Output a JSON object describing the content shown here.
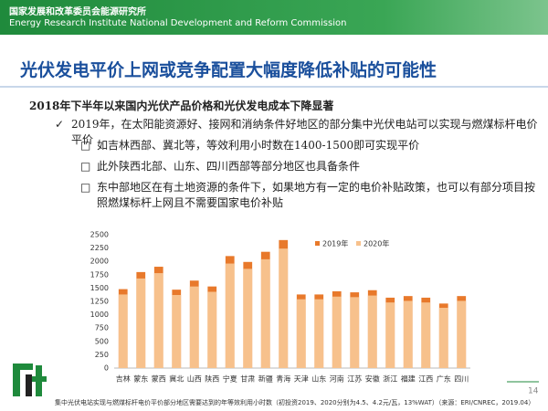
{
  "header": {
    "org_cn": "国家发展和改革委员会能源研究所",
    "org_en": "Energy Research Institute National Development and Reform Commission"
  },
  "title": "光伏发电平价上网或竞争配置大幅度降低补贴的可能性",
  "subtitle": "2018年下半年以来国内光伏产品价格和光伏发电成本下降显著",
  "bullet": "2019年，在太阳能资源好、接网和消纳条件好地区的部分集中光伏电站可以实现与燃煤标杆电价平价",
  "sub_bullets": [
    "如吉林西部、冀北等，等效利用小时数在1400-1500即可实现平价",
    "此外陕西北部、山东、四川西部等部分地区也具备条件",
    "东中部地区在有土地资源的条件下，如果地方有一定的电价补贴政策，也可以有部分项目按照燃煤标杆上网且不需要国家电价补贴"
  ],
  "chart_data": {
    "type": "bar",
    "categories": [
      "吉林",
      "蒙东",
      "蒙西",
      "冀北",
      "山西",
      "陕西",
      "宁夏",
      "甘肃",
      "新疆",
      "青海",
      "天津",
      "山东",
      "河南",
      "江苏",
      "安徽",
      "浙江",
      "福建",
      "江西",
      "广东",
      "四川"
    ],
    "series": [
      {
        "name": "2019年",
        "color": "#e8792b",
        "values": [
          1480,
          1800,
          1900,
          1470,
          1640,
          1530,
          2100,
          1990,
          2180,
          2400,
          1380,
          1380,
          1440,
          1420,
          1460,
          1320,
          1350,
          1320,
          1210,
          1350
        ]
      },
      {
        "name": "2020年",
        "color": "#f7c18c",
        "values": [
          1380,
          1680,
          1780,
          1370,
          1530,
          1430,
          1960,
          1860,
          2040,
          2240,
          1290,
          1290,
          1340,
          1330,
          1360,
          1230,
          1260,
          1230,
          1130,
          1260
        ]
      }
    ],
    "ylim": [
      0,
      2500
    ],
    "yticks": [
      0,
      250,
      500,
      750,
      1000,
      1250,
      1500,
      1750,
      2000,
      2250,
      2500
    ],
    "grid": false,
    "legend": "upper-right",
    "overlap": true
  },
  "footnote": "集中光伏电站实现与燃煤标杆电价平价部分地区需要达到的年等效利用小时数（初投资2019、2020分别为4.5、4.2元/瓦，13%WAT）（来源：ERI/CNREC，2019.04）",
  "page_number": "14"
}
